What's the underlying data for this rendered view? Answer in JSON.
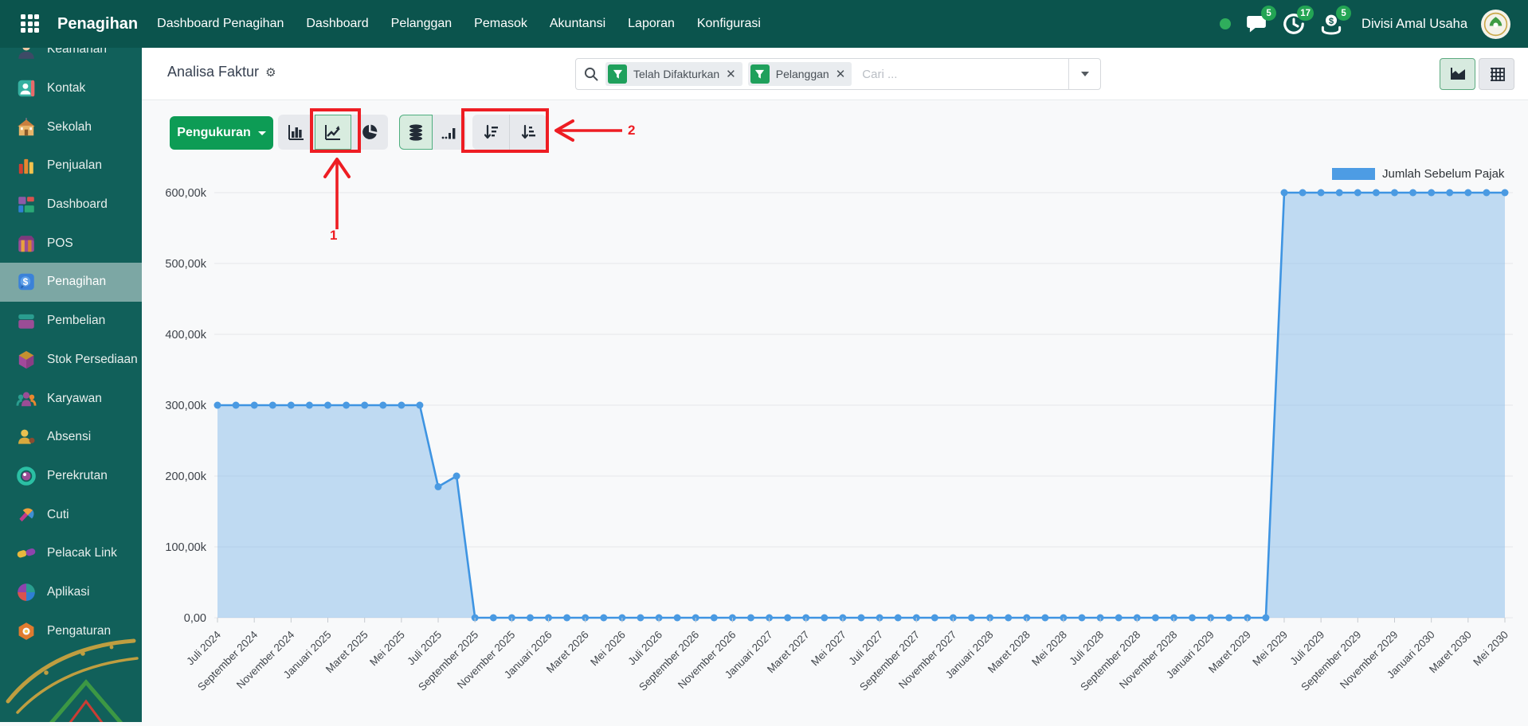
{
  "navbar": {
    "brand": "Penagihan",
    "menu": [
      "Dashboard Penagihan",
      "Dashboard",
      "Pelanggan",
      "Pemasok",
      "Akuntansi",
      "Laporan",
      "Konfigurasi"
    ],
    "badges": {
      "messages": "5",
      "activities": "17",
      "money": "5"
    },
    "company": "Divisi Amal Usaha"
  },
  "sidebar": {
    "active_item": "Penagihan",
    "items": [
      {
        "label": "Keamanan",
        "icon": "security-icon"
      },
      {
        "label": "Kontak",
        "icon": "contacts-icon"
      },
      {
        "label": "Sekolah",
        "icon": "school-icon"
      },
      {
        "label": "Penjualan",
        "icon": "sales-icon"
      },
      {
        "label": "Dashboard",
        "icon": "dashboard-icon"
      },
      {
        "label": "POS",
        "icon": "pos-icon"
      },
      {
        "label": "Penagihan",
        "icon": "invoicing-icon"
      },
      {
        "label": "Pembelian",
        "icon": "purchase-icon"
      },
      {
        "label": "Stok Persediaan",
        "icon": "inventory-icon"
      },
      {
        "label": "Karyawan",
        "icon": "employees-icon"
      },
      {
        "label": "Absensi",
        "icon": "attendance-icon"
      },
      {
        "label": "Perekrutan",
        "icon": "recruitment-icon"
      },
      {
        "label": "Cuti",
        "icon": "time-off-icon"
      },
      {
        "label": "Pelacak Link",
        "icon": "link-tracker-icon"
      },
      {
        "label": "Aplikasi",
        "icon": "apps-icon"
      },
      {
        "label": "Pengaturan",
        "icon": "settings-icon"
      }
    ]
  },
  "control_panel": {
    "breadcrumb": "Analisa Faktur",
    "search": {
      "facets": [
        {
          "label": "Telah Difakturkan"
        },
        {
          "label": "Pelanggan"
        }
      ],
      "placeholder": "Cari ..."
    }
  },
  "toolbar": {
    "measure_label": "Pengukuran"
  },
  "annotations": {
    "step1": "1",
    "step2": "2"
  },
  "colors": {
    "navbar_teal": "#0b544d",
    "sidebar_teal": "#11605a",
    "accent_green": "#0d9c55",
    "badge_green": "#23a554",
    "annotation_red": "#ee1d23",
    "chart_line_blue": "#3e94e2",
    "chart_fill_blue": "#7ab4e8",
    "legend_blue": "#4d9ce4"
  },
  "chart_data": {
    "type": "area",
    "title": "",
    "legend_position": "top-right",
    "grid": true,
    "x_unit": "month",
    "months_per_tick": 2,
    "x_tick_labels": [
      "Juli 2024",
      "September 2024",
      "November 2024",
      "Januari 2025",
      "Maret 2025",
      "Mei 2025",
      "Juli 2025",
      "September 2025",
      "November 2025",
      "Januari 2026",
      "Maret 2026",
      "Mei 2026",
      "Juli 2026",
      "September 2026",
      "November 2026",
      "Januari 2027",
      "Maret 2027",
      "Mei 2027",
      "Juli 2027",
      "September 2027",
      "November 2027",
      "Januari 2028",
      "Maret 2028",
      "Mei 2028",
      "Juli 2028",
      "September 2028",
      "November 2028",
      "Januari 2029",
      "Maret 2029",
      "Mei 2029",
      "Juli 2029",
      "September 2029",
      "November 2029",
      "Januari 2030",
      "Maret 2030",
      "Mei 2030"
    ],
    "y_tick_labels": [
      "600,00k",
      "500,00k",
      "400,00k",
      "300,00k",
      "200,00k",
      "100,00k",
      "0,00"
    ],
    "ylim": [
      0,
      600000
    ],
    "series": [
      {
        "name": "Jumlah Sebelum Pajak",
        "values": [
          300000,
          300000,
          300000,
          300000,
          300000,
          300000,
          300000,
          300000,
          300000,
          300000,
          300000,
          300000,
          185000,
          200000,
          0,
          0,
          0,
          0,
          0,
          0,
          0,
          0,
          0,
          0,
          0,
          0,
          0,
          0,
          0,
          0,
          0,
          0,
          0,
          0,
          0,
          0,
          0,
          0,
          0,
          0,
          0,
          0,
          0,
          0,
          0,
          0,
          0,
          0,
          0,
          0,
          0,
          0,
          0,
          0,
          0,
          0,
          0,
          0,
          600000,
          600000,
          600000,
          600000,
          600000,
          600000,
          600000,
          600000,
          600000,
          600000,
          600000,
          600000,
          600000
        ]
      }
    ]
  }
}
